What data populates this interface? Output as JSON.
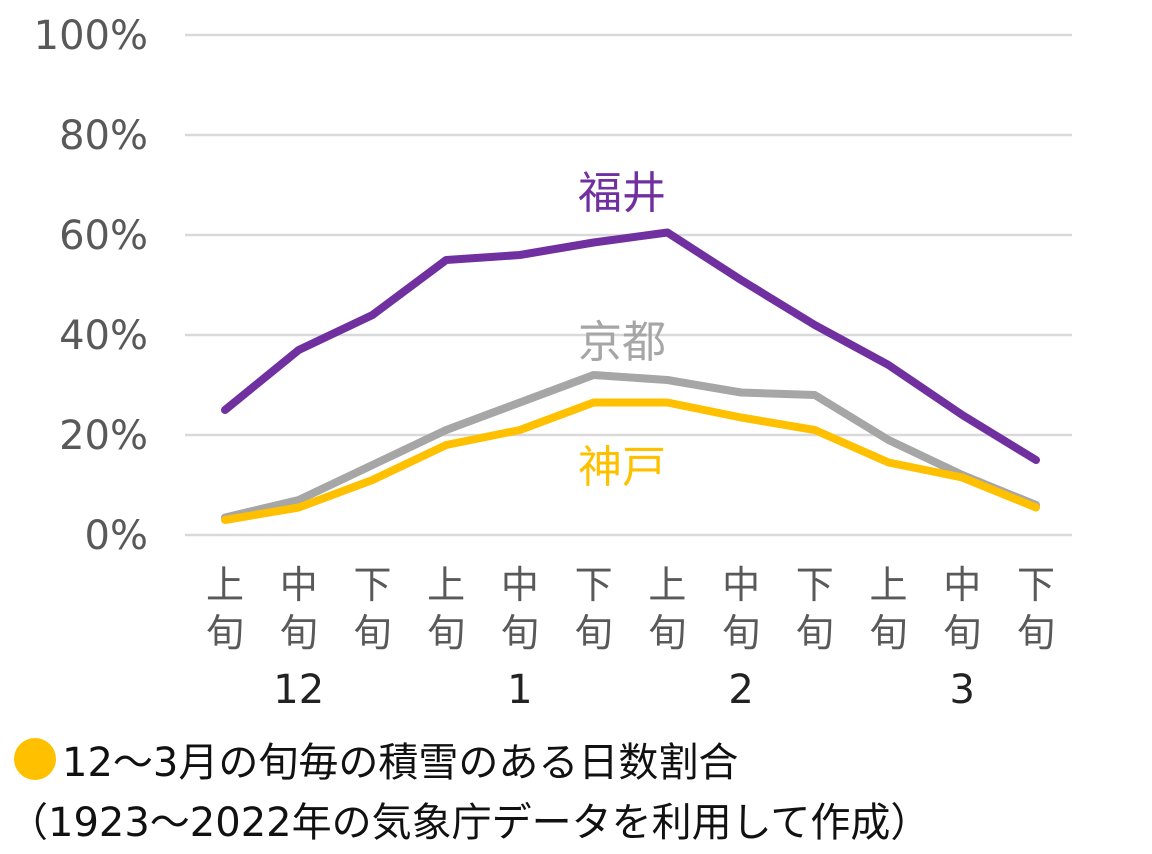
{
  "chart_data": {
    "type": "line",
    "categories": [
      "上旬",
      "中旬",
      "下旬",
      "上旬",
      "中旬",
      "下旬",
      "上旬",
      "中旬",
      "下旬",
      "上旬",
      "中旬",
      "下旬"
    ],
    "months": [
      {
        "label": "12",
        "index": 1
      },
      {
        "label": "1",
        "index": 4
      },
      {
        "label": "2",
        "index": 7
      },
      {
        "label": "3",
        "index": 10
      }
    ],
    "y_ticks": [
      "0%",
      "20%",
      "40%",
      "60%",
      "80%",
      "100%"
    ],
    "ylim": [
      0,
      100
    ],
    "grid": true,
    "series": [
      {
        "name": "福井",
        "color": "#7030a0",
        "values": [
          25,
          37,
          44,
          55,
          56,
          58.5,
          60.5,
          51,
          42,
          34,
          24,
          15
        ]
      },
      {
        "name": "京都",
        "color": "#a6a6a6",
        "values": [
          3.5,
          7,
          14,
          21,
          26.5,
          32,
          31,
          28.5,
          28,
          19,
          12,
          6
        ]
      },
      {
        "name": "神戸",
        "color": "#ffc000",
        "values": [
          3,
          5.5,
          11,
          18,
          21,
          26.5,
          26.5,
          23.5,
          21,
          14.5,
          11.5,
          5.5
        ]
      }
    ]
  },
  "caption": {
    "dot_color": "#ffc000",
    "line1": "12～3月の旬毎の積雪のある日数割合",
    "line2": "（1923～2022年の気象庁データを利用して作成）"
  }
}
